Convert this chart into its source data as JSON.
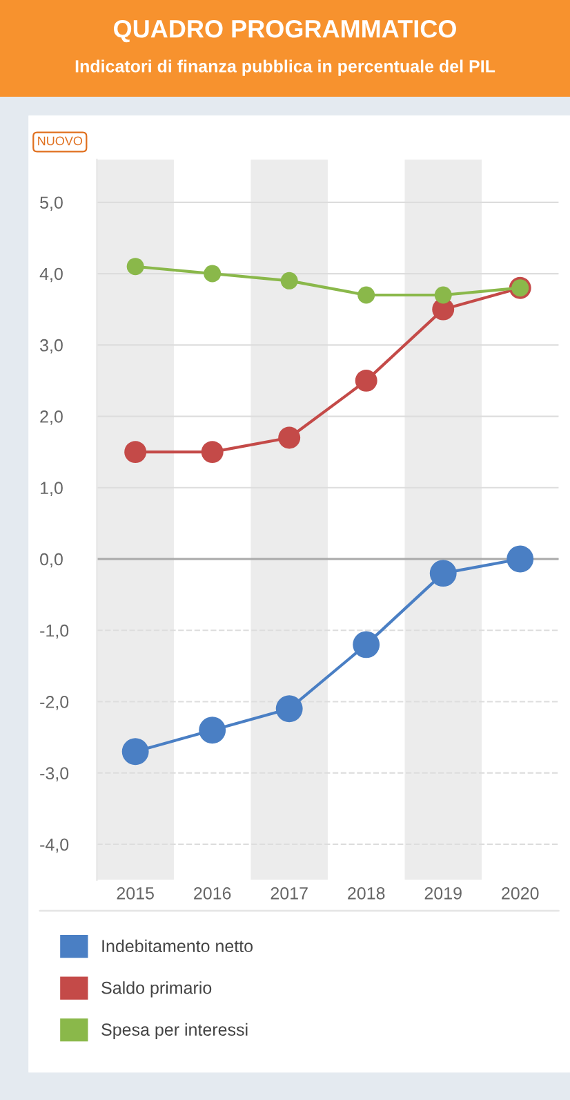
{
  "chart_data": {
    "type": "line",
    "title": "QUADRO PROGRAMMATICO",
    "subtitle": "Indicatori di finanza pubblica in percentuale del PIL",
    "annotations": [
      "NUOVO"
    ],
    "categories": [
      "2015",
      "2016",
      "2017",
      "2018",
      "2019",
      "2020"
    ],
    "series": [
      {
        "name": "Indebitamento netto",
        "color": "#4a7fc4",
        "values": [
          -2.7,
          -2.4,
          -2.1,
          -1.2,
          -0.2,
          0.0
        ]
      },
      {
        "name": "Saldo primario",
        "color": "#c44a48",
        "values": [
          1.5,
          1.5,
          1.7,
          2.5,
          3.5,
          3.8
        ]
      },
      {
        "name": "Spesa per interessi",
        "color": "#8ab84a",
        "values": [
          4.1,
          4.0,
          3.9,
          3.7,
          3.7,
          3.8
        ]
      }
    ],
    "ylim": [
      -4.5,
      5.6
    ],
    "yticks": [
      {
        "value": 5,
        "label": "5,0"
      },
      {
        "value": 4,
        "label": "4,0"
      },
      {
        "value": 3,
        "label": "3,0"
      },
      {
        "value": 2,
        "label": "2,0"
      },
      {
        "value": 1,
        "label": "1,0"
      },
      {
        "value": 0,
        "label": "0,0"
      },
      {
        "value": -1,
        "label": "-1,0"
      },
      {
        "value": -2,
        "label": "-2,0"
      },
      {
        "value": -3,
        "label": "-3,0"
      },
      {
        "value": -4,
        "label": "-4,0"
      }
    ],
    "ref_lines": [
      {
        "axis": "y",
        "value": 0,
        "color": "#aaaaaa"
      }
    ],
    "bands": [
      {
        "axis": "x",
        "from": "2015",
        "to": "2015",
        "color": "#ececec"
      },
      {
        "axis": "x",
        "from": "2017",
        "to": "2017",
        "color": "#ececec"
      },
      {
        "axis": "x",
        "from": "2019",
        "to": "2019",
        "color": "#ececec"
      }
    ],
    "grid": "y",
    "legend": "bottom",
    "marker": "circle",
    "line_style": "solid"
  }
}
